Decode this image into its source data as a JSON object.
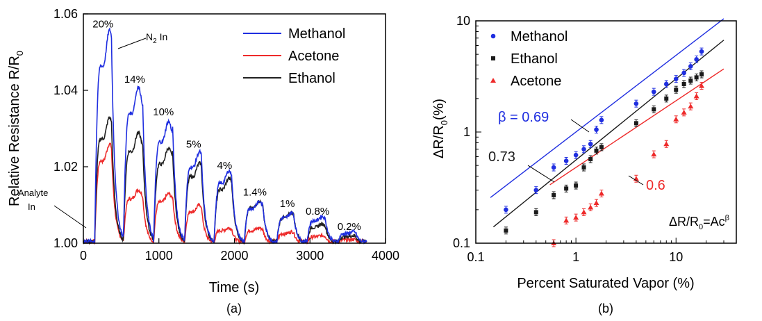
{
  "chart_data": [
    {
      "type": "line",
      "panel_label": "(a)",
      "xlabel": "Time (s)",
      "ylabel": "Relative Resistance R/R",
      "ylabel_sub": "0",
      "xlim": [
        0,
        4000
      ],
      "ylim": [
        1.0,
        1.06
      ],
      "xticks": [
        "0",
        "1000",
        "2000",
        "3000",
        "4000"
      ],
      "yticks": [
        "1.00",
        "1.02",
        "1.04",
        "1.06"
      ],
      "legend_position": "top-right",
      "pulses": [
        {
          "start": 150,
          "end": 370
        },
        {
          "start": 530,
          "end": 780
        },
        {
          "start": 930,
          "end": 1180
        },
        {
          "start": 1340,
          "end": 1560
        },
        {
          "start": 1730,
          "end": 1960
        },
        {
          "start": 2130,
          "end": 2370
        },
        {
          "start": 2560,
          "end": 2780
        },
        {
          "start": 2960,
          "end": 3200
        },
        {
          "start": 3370,
          "end": 3600
        }
      ],
      "series": [
        {
          "name": "Methanol",
          "color": "#1f2ee0",
          "peaks": [
            1.056,
            1.041,
            1.032,
            1.024,
            1.019,
            1.011,
            1.008,
            1.007,
            1.003
          ]
        },
        {
          "name": "Acetone",
          "color": "#ee2a2a",
          "peaks": [
            1.026,
            1.014,
            1.013,
            1.01,
            1.004,
            1.004,
            1.003,
            1.002,
            1.001
          ]
        },
        {
          "name": "Ethanol",
          "color": "#202020",
          "peaks": [
            1.033,
            1.029,
            1.025,
            1.021,
            1.017,
            1.011,
            1.008,
            1.005,
            1.002
          ]
        }
      ],
      "annotations": [
        {
          "text": "20%",
          "x": 260,
          "y": 1.0565
        },
        {
          "text": "14%",
          "x": 680,
          "y": 1.042
        },
        {
          "text": "10%",
          "x": 1060,
          "y": 1.0335
        },
        {
          "text": "5%",
          "x": 1460,
          "y": 1.025
        },
        {
          "text": "4%",
          "x": 1870,
          "y": 1.0195
        },
        {
          "text": "1.4%",
          "x": 2270,
          "y": 1.0125
        },
        {
          "text": "1%",
          "x": 2700,
          "y": 1.0095
        },
        {
          "text": "0.8%",
          "x": 3100,
          "y": 1.0075
        },
        {
          "text": "0.2%",
          "x": 3520,
          "y": 1.0035
        }
      ],
      "arrow_labels": {
        "n2_in": "N",
        "n2_sub": "2",
        "n2_suffix": " In",
        "analyte": "Analyte",
        "analyte_in": "In"
      }
    },
    {
      "type": "scatter",
      "panel_label": "(b)",
      "xlabel": "Percent Saturated Vapor (%)",
      "ylabel": "ΔR/R",
      "ylabel_sub": "0",
      "ylabel_suffix": "(%)",
      "xscale": "log",
      "yscale": "log",
      "xlim": [
        0.1,
        40
      ],
      "ylim": [
        0.1,
        10
      ],
      "xticks": [
        "0.1",
        "1",
        "10"
      ],
      "yticks": [
        "0.1",
        "1",
        "10"
      ],
      "legend_position": "top-left",
      "series": [
        {
          "name": "Methanol",
          "color": "#1f2ee0",
          "marker": "circle",
          "x": [
            0.2,
            0.4,
            0.6,
            0.8,
            1.0,
            1.2,
            1.4,
            1.6,
            1.8,
            4,
            6,
            8,
            10,
            12,
            14,
            16,
            18
          ],
          "y": [
            0.2,
            0.3,
            0.48,
            0.55,
            0.62,
            0.7,
            0.78,
            1.05,
            1.28,
            1.8,
            2.3,
            2.7,
            3.0,
            3.4,
            3.9,
            4.5,
            5.3
          ],
          "fit_label": "β = 0.69",
          "fit": {
            "a": 1.0,
            "b": 0.69
          }
        },
        {
          "name": "Ethanol",
          "color": "#1a1a1a",
          "marker": "square",
          "x": [
            0.2,
            0.4,
            0.6,
            0.8,
            1.0,
            1.2,
            1.4,
            1.6,
            1.8,
            4,
            6,
            8,
            10,
            12,
            14,
            16,
            18
          ],
          "y": [
            0.13,
            0.19,
            0.27,
            0.31,
            0.33,
            0.48,
            0.57,
            0.68,
            0.73,
            1.2,
            1.6,
            2.0,
            2.4,
            2.7,
            2.9,
            3.1,
            3.3
          ],
          "fit_label": "0.73",
          "fit": {
            "a": 0.56,
            "b": 0.73
          }
        },
        {
          "name": "Acetone",
          "color": "#ee2a2a",
          "marker": "triangle",
          "x": [
            0.6,
            0.8,
            1.0,
            1.2,
            1.4,
            1.6,
            1.8,
            4,
            6,
            8,
            10,
            12,
            14,
            16,
            18
          ],
          "y": [
            0.1,
            0.16,
            0.17,
            0.19,
            0.21,
            0.23,
            0.28,
            0.38,
            0.63,
            0.78,
            1.3,
            1.5,
            1.7,
            2.1,
            2.6
          ],
          "fit_label": "0.6",
          "fit": {
            "a": 0.48,
            "b": 0.6
          }
        }
      ],
      "equation": {
        "lhs": "ΔR/R",
        "sub": "0",
        "rhs": "=Ac",
        "sup": "β"
      }
    }
  ]
}
